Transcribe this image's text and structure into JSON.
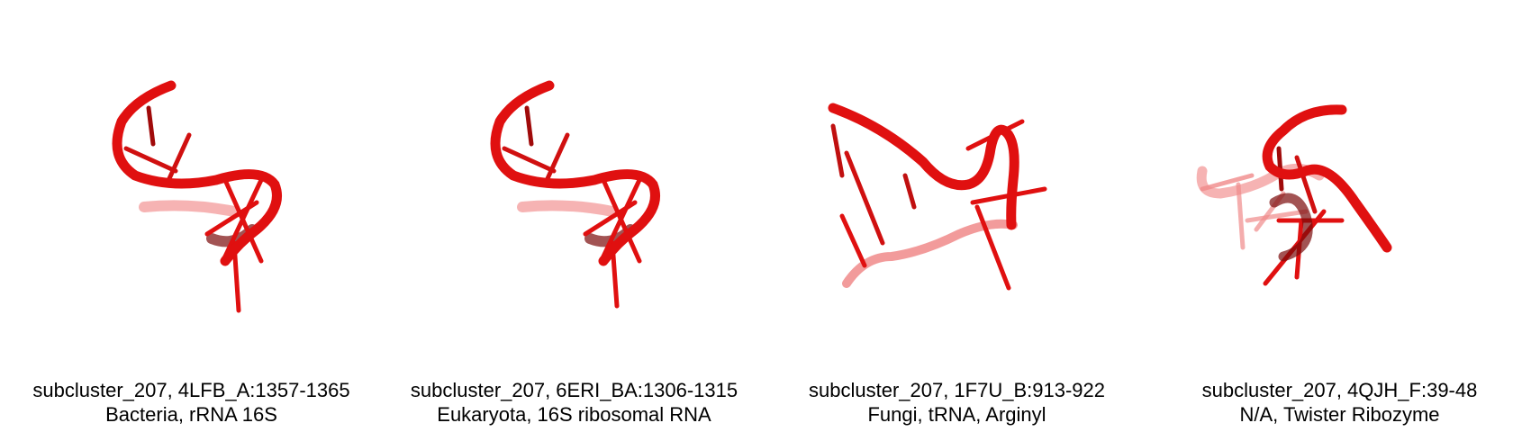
{
  "panels": [
    {
      "id": "subcluster_207, 4LFB_A:1357-1365",
      "desc": "Bacteria, rRNA 16S"
    },
    {
      "id": "subcluster_207, 6ERI_BA:1306-1315",
      "desc": "Eukaryota, 16S ribosomal RNA"
    },
    {
      "id": "subcluster_207, 1F7U_B:913-922",
      "desc": "Fungi, tRNA, Arginyl"
    },
    {
      "id": "subcluster_207, 4QJH_F:39-48",
      "desc": "N/A, Twister Ribozyme"
    }
  ],
  "colors": {
    "backbone": "#e01010",
    "backbone_dark": "#a00a0a",
    "faded": "#f08a8a"
  }
}
